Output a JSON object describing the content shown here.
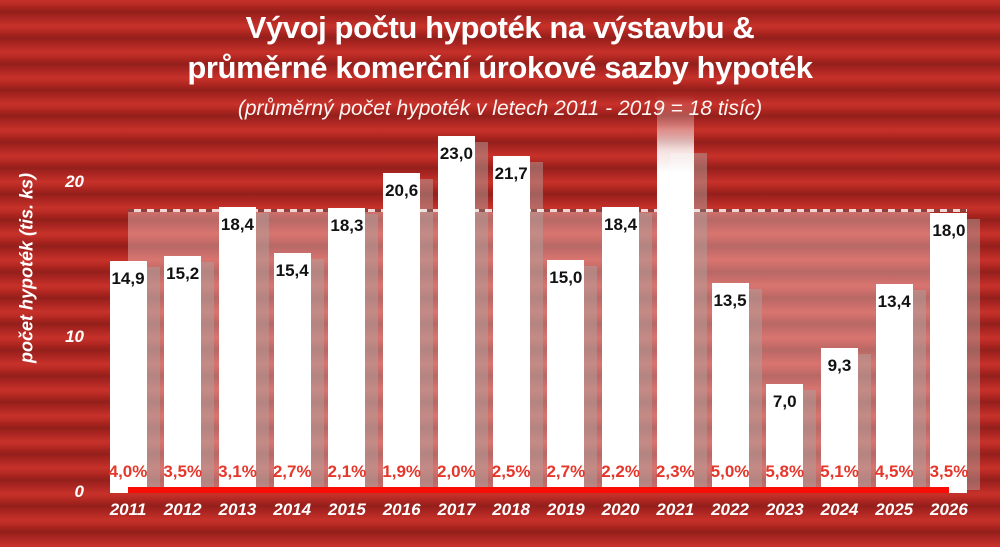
{
  "header": {
    "title_line1": "Vývoj počtu hypoték na výstavbu &",
    "title_line2": "průměrné komerční úrokové sazby hypoték",
    "subtitle": "(průměrný počet hypoték v letech 2011 - 2019 = 18 tisíc)"
  },
  "colors": {
    "background_stripe_light": "#c7322a",
    "background_stripe_dark": "#93201b",
    "bar_fill": "#ffffff",
    "bar_value_text": "#121212",
    "rate_text": "#e5372b",
    "axis_line": "#f90d05",
    "band_overlay": "rgba(255,255,255,0.33)",
    "year_tick_text": "#ffffff"
  },
  "chart_data": {
    "type": "bar",
    "title": "Vývoj počtu hypoték na výstavbu & průměrné komerční úrokové sazby hypoték",
    "subtitle": "(průměrný počet hypoték v letech 2011 - 2019 = 18 tisíc)",
    "ylabel": "počet hypoték (tis. ks)",
    "xlabel": "",
    "ylim": [
      0,
      25
    ],
    "yticks": [
      0,
      10,
      20
    ],
    "grid": false,
    "legend": "none",
    "average_band": {
      "level": 18,
      "style": "translucent white band from 0 to 18 with dashed top line"
    },
    "categories": [
      "2011",
      "2012",
      "2013",
      "2014",
      "2015",
      "2016",
      "2017",
      "2018",
      "2019",
      "2020",
      "2021",
      "2022",
      "2023",
      "2024",
      "2025",
      "2026"
    ],
    "series": [
      {
        "name": "počet hypoték (tis. ks)",
        "type": "bar",
        "values": [
          14.9,
          15.2,
          18.4,
          15.4,
          18.3,
          20.6,
          23.0,
          21.7,
          15.0,
          18.4,
          null,
          13.5,
          7.0,
          9.3,
          13.4,
          18.0
        ],
        "labels": [
          "14,9",
          "15,2",
          "18,4",
          "15,4",
          "18,3",
          "20,6",
          "23,0",
          "21,7",
          "15,0",
          "18,4",
          "",
          "13,5",
          "7,0",
          "9,3",
          "13,4",
          "18,0"
        ]
      },
      {
        "name": "průměrné komerční úrokové sazby hypoték",
        "type": "value-row",
        "unit": "%",
        "values": [
          4.0,
          3.5,
          3.1,
          2.7,
          2.1,
          1.9,
          2.0,
          2.5,
          2.7,
          2.2,
          2.3,
          5.0,
          5.8,
          5.1,
          4.5,
          3.5
        ],
        "labels": [
          "4,0%",
          "3,5%",
          "3,1%",
          "2,7%",
          "2,1%",
          "1,9%",
          "2,0%",
          "2,5%",
          "2,7%",
          "2,2%",
          "2,3%",
          "5,0%",
          "5,8%",
          "5,1%",
          "4,5%",
          "3,5%"
        ]
      }
    ],
    "offscale_bar": {
      "year": "2021",
      "rendered": "bar exceeds chart top and fades out; no value label shown"
    }
  }
}
